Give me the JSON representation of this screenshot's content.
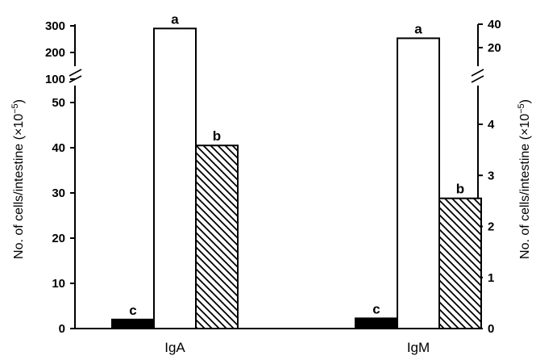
{
  "chart_data": {
    "type": "bar",
    "categories": [
      "IgA",
      "IgM"
    ],
    "series": [
      {
        "fill": "black",
        "values": [
          2,
          0.2
        ],
        "significance": [
          "c",
          "c"
        ]
      },
      {
        "fill": "white",
        "values": [
          290,
          28
        ],
        "significance": [
          "a",
          "a"
        ]
      },
      {
        "fill": "hatched",
        "values": [
          40.5,
          2.55
        ],
        "significance": [
          "b",
          "b"
        ]
      }
    ],
    "left_axis": {
      "label": "No. of cells/intestine (×10",
      "label_exp": "−5",
      "label_close": ")",
      "lower_ticks": [
        "0",
        "10",
        "20",
        "30",
        "40",
        "50"
      ],
      "upper_ticks": [
        "100",
        "200",
        "300"
      ],
      "lower_range": [
        0,
        55
      ],
      "upper_range": [
        55,
        300
      ],
      "broken": true
    },
    "right_axis": {
      "label": "No. of cells/intestine (×10",
      "label_exp": "−5",
      "label_close": ")",
      "lower_ticks": [
        "0",
        "1",
        "2",
        "3",
        "4"
      ],
      "upper_ticks": [
        "20",
        "40"
      ],
      "lower_range": [
        0,
        4.8
      ],
      "upper_range": [
        4.8,
        40
      ],
      "broken": true
    },
    "colors": {
      "bar_dark": "#000000",
      "bar_open": "#ffffff",
      "hatch": "#000000"
    }
  }
}
